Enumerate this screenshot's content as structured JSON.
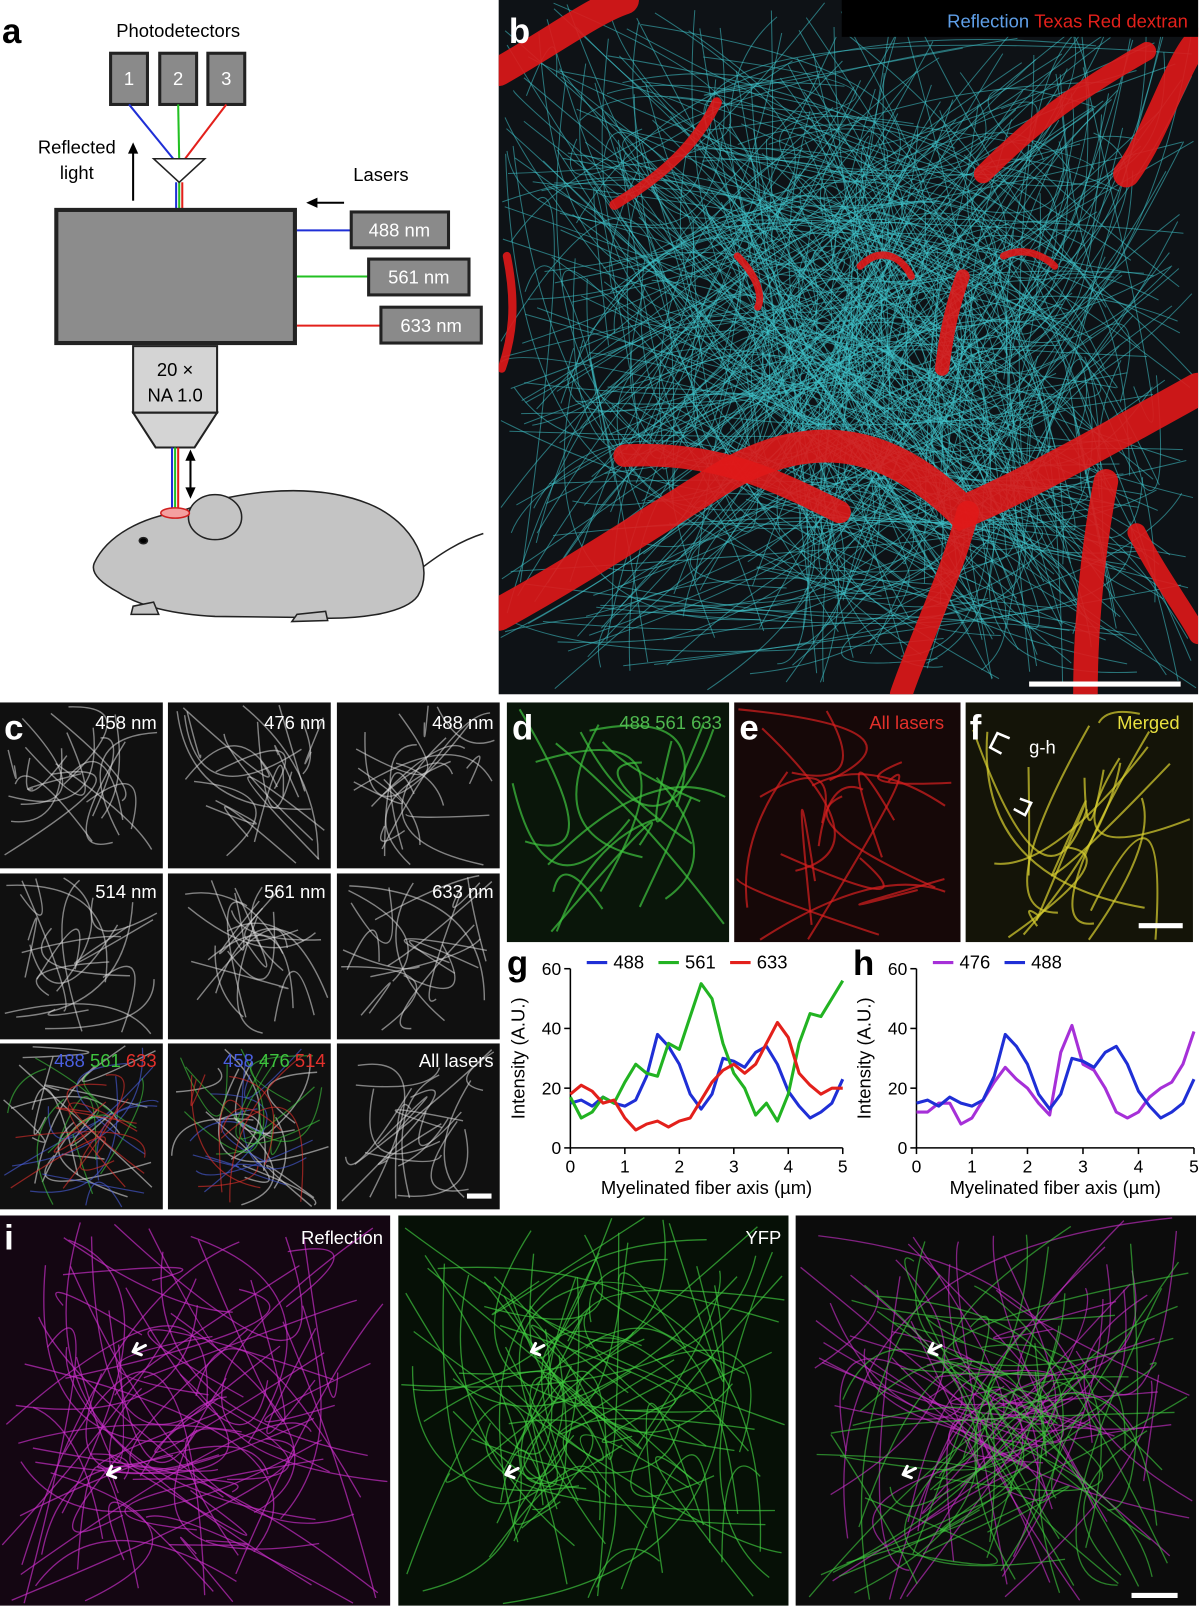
{
  "panel_a": {
    "letter": "a",
    "photodetectors": "Photodetectors",
    "detectors": [
      "1",
      "2",
      "3"
    ],
    "reflected_light": [
      "Reflected",
      "light"
    ],
    "lasers": "Lasers",
    "laser_lines": [
      "488 nm",
      "561 nm",
      "633 nm"
    ],
    "objective": [
      "20 ×",
      "NA 1.0"
    ]
  },
  "panel_b": {
    "letter": "b",
    "legend": [
      "Reflection",
      "Texas Red dextran"
    ]
  },
  "panel_c": {
    "letter": "c",
    "tiles": [
      "458 nm",
      "476 nm",
      "488 nm",
      "514 nm",
      "561 nm",
      "633 nm"
    ],
    "merge_1": [
      "488",
      "561",
      "633"
    ],
    "merge_2": [
      "458",
      "476",
      "514"
    ],
    "all_lasers": "All lasers"
  },
  "panel_d": {
    "letter": "d",
    "labels": [
      "488",
      "561",
      "633"
    ]
  },
  "panel_e": {
    "letter": "e",
    "label": "All lasers"
  },
  "panel_f": {
    "letter": "f",
    "label": "Merged",
    "region": "g-h"
  },
  "panel_i": {
    "letter": "i",
    "labels": [
      "Reflection",
      "YFP"
    ]
  },
  "chart_data": [
    {
      "type": "line",
      "panel_label": "g",
      "y_label": "Intensity (A.U.)",
      "x_label": "Myelinated fiber axis (µm)",
      "x": [
        0,
        0.2,
        0.4,
        0.6,
        0.8,
        1.0,
        1.2,
        1.4,
        1.6,
        1.8,
        2.0,
        2.2,
        2.4,
        2.6,
        2.8,
        3.0,
        3.2,
        3.4,
        3.6,
        3.8,
        4.0,
        4.2,
        4.4,
        4.6,
        4.8,
        5.0
      ],
      "series": [
        {
          "name": "488",
          "color": "#1f2fd6",
          "values": [
            15,
            16,
            14,
            17,
            15,
            14,
            16,
            24,
            38,
            34,
            28,
            18,
            13,
            18,
            30,
            29,
            27,
            32,
            34,
            28,
            19,
            14,
            10,
            12,
            15,
            23
          ]
        },
        {
          "name": "561",
          "color": "#22b322",
          "values": [
            17,
            10,
            12,
            17,
            15,
            22,
            28,
            25,
            24,
            35,
            33,
            44,
            55,
            50,
            35,
            25,
            20,
            11,
            15,
            9,
            18,
            35,
            45,
            44,
            50,
            56
          ]
        },
        {
          "name": "633",
          "color": "#e3201b",
          "values": [
            18,
            21,
            19,
            15,
            16,
            10,
            6,
            8,
            9,
            7,
            9,
            10,
            16,
            22,
            26,
            28,
            25,
            28,
            35,
            42,
            37,
            25,
            21,
            18,
            20,
            20
          ]
        }
      ],
      "xlim": [
        0,
        5
      ],
      "xticks": [
        0,
        1,
        2,
        3,
        4,
        5
      ],
      "ylim": [
        0,
        60
      ],
      "yticks": [
        0,
        20,
        40,
        60
      ]
    },
    {
      "type": "line",
      "panel_label": "h",
      "y_label": "Intensity (A.U.)",
      "x_label": "Myelinated fiber axis (µm)",
      "x": [
        0,
        0.2,
        0.4,
        0.6,
        0.8,
        1.0,
        1.2,
        1.4,
        1.6,
        1.8,
        2.0,
        2.2,
        2.4,
        2.6,
        2.8,
        3.0,
        3.2,
        3.4,
        3.6,
        3.8,
        4.0,
        4.2,
        4.4,
        4.6,
        4.8,
        5.0
      ],
      "series": [
        {
          "name": "476",
          "color": "#a630d8",
          "values": [
            12,
            12,
            15,
            15,
            8,
            10,
            16,
            22,
            27,
            23,
            20,
            15,
            11,
            32,
            41,
            28,
            26,
            20,
            12,
            10,
            12,
            17,
            20,
            22,
            28,
            39
          ]
        },
        {
          "name": "488",
          "color": "#1f2fd6",
          "values": [
            15,
            16,
            14,
            17,
            15,
            14,
            16,
            24,
            38,
            34,
            28,
            18,
            13,
            18,
            30,
            29,
            27,
            32,
            34,
            28,
            19,
            14,
            10,
            12,
            15,
            23
          ]
        }
      ],
      "xlim": [
        0,
        5
      ],
      "xticks": [
        0,
        1,
        2,
        3,
        4,
        5
      ],
      "ylim": [
        0,
        60
      ],
      "yticks": [
        0,
        20,
        40,
        60
      ]
    }
  ]
}
